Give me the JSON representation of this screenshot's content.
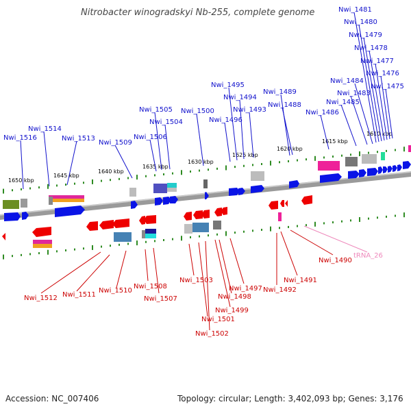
{
  "title": "Nitrobacter winogradskyi Nb-255, complete genome",
  "footer": {
    "accession": "Accession: NC_007406",
    "summary": "Topology: circular; Length: 3,402,093 bp; Genes: 3,176"
  },
  "colors": {
    "plus_label": "#1010cc",
    "minus_label": "#cc0000",
    "trna_label": "#ee88bb",
    "plus_gene": "#0a14e6",
    "minus_gene": "#ee0000",
    "tick": "#2e8b22",
    "backbone": "#888888"
  },
  "kbp_labels": [
    "1650 kbp",
    "1645 kbp",
    "1640 kbp",
    "1635 kbp",
    "1630 kbp",
    "1625 kbp",
    "1620 kbp",
    "1615 kbp",
    "1610 kbp"
  ],
  "plus_labels": [
    "Nwi_1481",
    "Nwi_1480",
    "Nwi_1479",
    "Nwi_1478",
    "Nwi_1477",
    "Nwi_1476",
    "Nwi_1475",
    "Nwi_1484",
    "Nwi_1483",
    "Nwi_1485",
    "Nwi_1486",
    "Nwi_1489",
    "Nwi_1488",
    "Nwi_1495",
    "Nwi_1494",
    "Nwi_1493",
    "Nwi_1496",
    "Nwi_1500",
    "Nwi_1505",
    "Nwi_1504",
    "Nwi_1506",
    "Nwi_1509",
    "Nwi_1514",
    "Nwi_1513",
    "Nwi_1516"
  ],
  "minus_labels": [
    "Nwi_1512",
    "Nwi_1511",
    "Nwi_1510",
    "Nwi_1508",
    "Nwi_1507",
    "Nwi_1503",
    "Nwi_1501",
    "Nwi_1502",
    "Nwi_1499",
    "Nwi_1498",
    "Nwi_1497",
    "Nwi_1492",
    "Nwi_1491",
    "Nwi_1490"
  ],
  "trna_label": "tRNA_26"
}
